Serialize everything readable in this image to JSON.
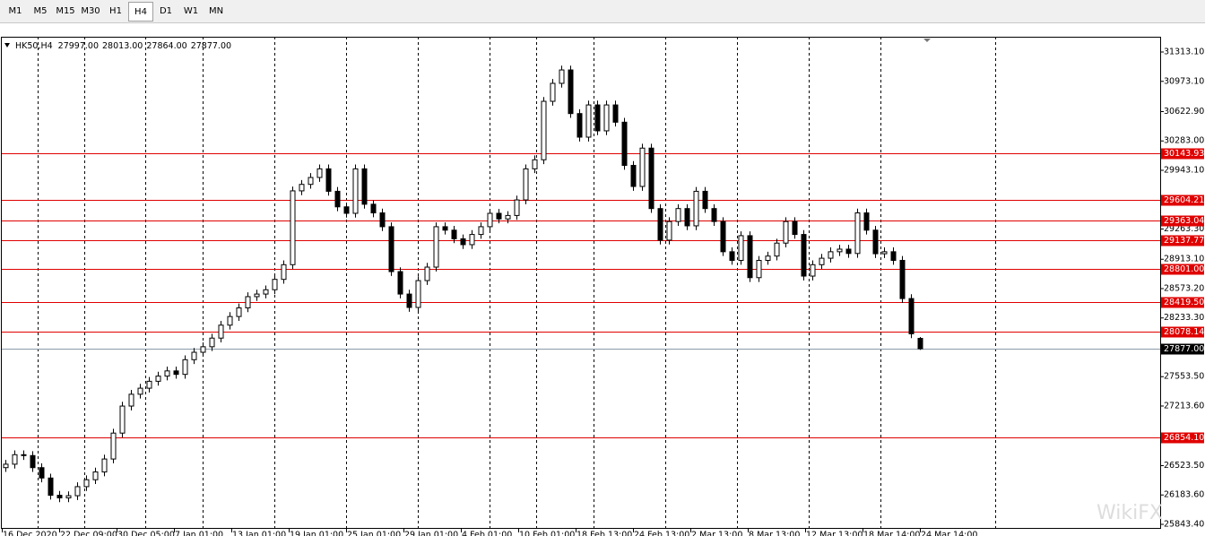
{
  "toolbar": {
    "buttons": [
      "M1",
      "M5",
      "M15",
      "M30",
      "H1",
      "H4",
      "D1",
      "W1",
      "MN"
    ],
    "selected": 5
  },
  "watermark": "WikiFX",
  "chart_data": {
    "type": "candlestick",
    "title": "HK50,H4",
    "quote": [
      "27997.00",
      "28013.00",
      "27864.00",
      "27877.00"
    ],
    "x_labels": [
      "16 Dec 2020",
      "22 Dec 09:00",
      "30 Dec 05:00",
      "7 Jan 01:00",
      "13 Jan 01:00",
      "19 Jan 01:00",
      "25 Jan 01:00",
      "29 Jan 01:00",
      "4 Feb 01:00",
      "10 Feb 01:00",
      "18 Feb 13:00",
      "24 Feb 13:00",
      "2 Mar 13:00",
      "8 Mar 13:00",
      "12 Mar 13:00",
      "18 Mar 14:00",
      "24 Mar 14:00"
    ],
    "ylim": [
      25791.5,
      31489.5
    ],
    "yticks": [
      {
        "value": 31313.1,
        "label": "31313.10"
      },
      {
        "value": 30973.1,
        "label": "30973.10"
      },
      {
        "value": 30622.9,
        "label": "30622.90"
      },
      {
        "value": 30283,
        "label": "30283.00"
      },
      {
        "value": 29943.1,
        "label": "29943.10"
      },
      {
        "value": 29263.3,
        "label": "29263.30"
      },
      {
        "value": 28913.1,
        "label": "28913.10"
      },
      {
        "value": 28573.2,
        "label": "28573.20"
      },
      {
        "value": 28233.3,
        "label": "28233.30"
      },
      {
        "value": 27553.5,
        "label": "27553.50"
      },
      {
        "value": 27213.6,
        "label": "27213.60"
      },
      {
        "value": 26523.5,
        "label": "26523.50"
      },
      {
        "value": 26183.6,
        "label": "26183.60"
      },
      {
        "value": 25843.4,
        "label": "25843.40"
      }
    ],
    "levels": [
      30143.93,
      29604.21,
      29363.04,
      29137.77,
      {
        "value": 28801,
        "label": "28801.00"
      },
      {
        "value": 28419.5,
        "label": "28419.50"
      },
      28078.14,
      {
        "value": 26854.1,
        "label": "26854.10"
      }
    ],
    "level_color": "#e00000",
    "current": {
      "value": 27877,
      "label": "27877.00"
    },
    "open": [
      26500,
      26540,
      26650,
      26640,
      26500,
      26380,
      26180,
      26150,
      26175,
      26280,
      26360,
      26450,
      26600,
      26900,
      27213,
      27350,
      27420,
      27500,
      27560,
      27620,
      27580,
      27750,
      27836,
      27900,
      28000,
      28150,
      28250,
      28350,
      28480,
      28510,
      28560,
      28680,
      28850,
      29705,
      29780,
      29860,
      29960,
      29700,
      29520,
      29445,
      29960,
      29550,
      29450,
      29290,
      28770,
      28510,
      28355,
      28666,
      28822,
      29290,
      29250,
      29150,
      29082,
      29200,
      29290,
      29445,
      29380,
      29420,
      29600,
      29960,
      30065,
      30742,
      30950,
      31105,
      30600,
      30327,
      30700,
      30400,
      30700,
      30500,
      30000,
      29756,
      30200,
      29500,
      29134,
      29350,
      29500,
      29300,
      29700,
      29500,
      29350,
      29000,
      28900,
      29186,
      28700,
      28900,
      28950,
      29100,
      29350,
      29200,
      28718,
      28850,
      28925,
      29000,
      29030,
      28980,
      29450,
      29250,
      28977,
      29000,
      28900,
      28458,
      27997
    ],
    "high": [
      26590,
      26700,
      26700,
      26690,
      26550,
      26430,
      26230,
      26225,
      26330,
      26410,
      26500,
      26650,
      26950,
      27263,
      27400,
      27470,
      27550,
      27610,
      27670,
      27670,
      27800,
      27886,
      27950,
      28050,
      28200,
      28300,
      28400,
      28530,
      28560,
      28610,
      28730,
      28900,
      29755,
      29830,
      29910,
      30010,
      30010,
      29750,
      29570,
      30010,
      30010,
      29600,
      29500,
      29340,
      28820,
      28560,
      28716,
      28872,
      29340,
      29340,
      29300,
      29200,
      29250,
      29340,
      29495,
      29495,
      29470,
      29650,
      30010,
      30115,
      30792,
      31000,
      31155,
      31155,
      30650,
      30750,
      30750,
      30750,
      30750,
      30550,
      30050,
      30250,
      30250,
      29550,
      29400,
      29550,
      29550,
      29750,
      29750,
      29550,
      29400,
      29050,
      29236,
      29236,
      28950,
      29000,
      29150,
      29400,
      29400,
      29250,
      28900,
      28975,
      29050,
      29080,
      29080,
      29500,
      29500,
      29300,
      29050,
      29050,
      28950,
      28508,
      28013
    ],
    "low": [
      26450,
      26490,
      26590,
      26450,
      26330,
      26130,
      26100,
      26100,
      26125,
      26230,
      26310,
      26400,
      26550,
      26850,
      27163,
      27300,
      27370,
      27450,
      27510,
      27530,
      27530,
      27700,
      27786,
      27850,
      27950,
      28100,
      28200,
      28300,
      28430,
      28460,
      28510,
      28630,
      28800,
      29655,
      29730,
      29810,
      29650,
      29470,
      29395,
      29395,
      29500,
      29400,
      29240,
      28720,
      28460,
      28305,
      28305,
      28616,
      28772,
      29200,
      29100,
      29032,
      29032,
      29150,
      29240,
      29330,
      29330,
      29370,
      29550,
      29910,
      30015,
      30692,
      30900,
      30550,
      30277,
      30277,
      30350,
      30350,
      30450,
      29950,
      29706,
      29706,
      29450,
      29084,
      29084,
      29300,
      29250,
      29250,
      29450,
      29300,
      28950,
      28850,
      28850,
      28650,
      28650,
      28850,
      28900,
      29050,
      29150,
      28668,
      28668,
      28800,
      28875,
      28950,
      28930,
      28930,
      29200,
      28927,
      28927,
      28850,
      28408,
      28000,
      27864
    ],
    "close": [
      26540,
      26650,
      26640,
      26500,
      26380,
      26180,
      26150,
      26175,
      26280,
      26360,
      26450,
      26600,
      26900,
      27213,
      27350,
      27420,
      27500,
      27560,
      27620,
      27580,
      27750,
      27836,
      27900,
      28000,
      28150,
      28250,
      28350,
      28480,
      28510,
      28560,
      28680,
      28850,
      29705,
      29780,
      29860,
      29960,
      29700,
      29520,
      29445,
      29960,
      29550,
      29450,
      29290,
      28770,
      28510,
      28355,
      28666,
      28822,
      29290,
      29250,
      29150,
      29082,
      29200,
      29290,
      29445,
      29380,
      29420,
      29600,
      29960,
      30065,
      30742,
      30950,
      31105,
      30600,
      30327,
      30700,
      30400,
      30700,
      30500,
      30000,
      29756,
      30200,
      29500,
      29134,
      29350,
      29500,
      29300,
      29700,
      29500,
      29350,
      29000,
      28900,
      29186,
      28700,
      28900,
      28950,
      29100,
      29350,
      29200,
      28718,
      28850,
      28925,
      29000,
      29030,
      28980,
      29450,
      29250,
      28977,
      29000,
      28900,
      28458,
      28050,
      27877
    ]
  }
}
